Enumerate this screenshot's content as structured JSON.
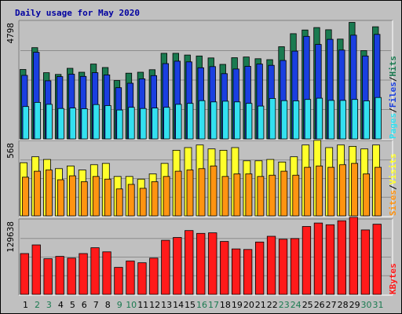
{
  "title": "Daily usage for May 2020",
  "colors": {
    "background": "#c0c0c0",
    "panel": "#c0c0c0",
    "grid": "#8c8c8c",
    "hits": "#1a7a50",
    "files": "#1a3fe0",
    "pages": "#33e0f0",
    "visits": "#ffff2b",
    "sites": "#ff9411",
    "kbytes": "#ff1a1a",
    "title": "#0000a0",
    "weekend_label": "#1a7a50",
    "weekday_label": "#000000"
  },
  "chart_data": [
    {
      "type": "bar",
      "name": "hits-files-pages",
      "max_label": "4798",
      "legend": [
        "Pages",
        "/",
        "Files",
        "/",
        "Hits"
      ],
      "categories": [
        "1",
        "2",
        "3",
        "4",
        "5",
        "6",
        "7",
        "8",
        "9",
        "10",
        "11",
        "12",
        "13",
        "14",
        "15",
        "16",
        "17",
        "18",
        "19",
        "20",
        "21",
        "22",
        "23",
        "24",
        "25",
        "26",
        "27",
        "28",
        "29",
        "30",
        "31"
      ],
      "ylim": [
        0,
        4798
      ],
      "series": [
        {
          "name": "Hits",
          "values": [
            2830,
            3720,
            2700,
            2630,
            2880,
            2720,
            3050,
            2910,
            2380,
            2680,
            2720,
            2820,
            3490,
            3490,
            3420,
            3380,
            3300,
            3040,
            3310,
            3340,
            3270,
            3230,
            3760,
            4290,
            4440,
            4540,
            4450,
            4070,
            4750,
            3600,
            4570
          ]
        },
        {
          "name": "Files",
          "values": [
            2590,
            3530,
            2370,
            2540,
            2640,
            2550,
            2700,
            2610,
            2090,
            2270,
            2450,
            2580,
            3070,
            3170,
            3140,
            2900,
            2950,
            2660,
            2850,
            2960,
            3050,
            3000,
            3200,
            3580,
            4180,
            3850,
            4060,
            3620,
            4230,
            3380,
            4260
          ]
        },
        {
          "name": "Pages",
          "values": [
            1320,
            1490,
            1410,
            1240,
            1260,
            1230,
            1400,
            1360,
            1180,
            1290,
            1240,
            1260,
            1290,
            1410,
            1450,
            1560,
            1510,
            1540,
            1510,
            1450,
            1340,
            1650,
            1560,
            1550,
            1610,
            1660,
            1570,
            1570,
            1610,
            1550,
            1690
          ]
        }
      ]
    },
    {
      "type": "bar",
      "name": "visits-sites",
      "max_label": "568",
      "legend": [
        "Sites",
        "/",
        "Visits"
      ],
      "categories": [
        "1",
        "2",
        "3",
        "4",
        "5",
        "6",
        "7",
        "8",
        "9",
        "10",
        "11",
        "12",
        "13",
        "14",
        "15",
        "16",
        "17",
        "18",
        "19",
        "20",
        "21",
        "22",
        "23",
        "24",
        "25",
        "26",
        "27",
        "28",
        "29",
        "30",
        "31"
      ],
      "ylim": [
        0,
        568
      ],
      "series": [
        {
          "name": "Visits",
          "values": [
            405,
            450,
            430,
            360,
            380,
            350,
            390,
            400,
            300,
            300,
            280,
            320,
            400,
            500,
            520,
            540,
            510,
            500,
            520,
            420,
            420,
            430,
            410,
            450,
            540,
            575,
            520,
            540,
            530,
            510,
            540
          ]
        },
        {
          "name": "Sites",
          "values": [
            295,
            340,
            350,
            275,
            305,
            260,
            300,
            280,
            205,
            240,
            210,
            260,
            300,
            340,
            350,
            360,
            380,
            300,
            320,
            320,
            300,
            310,
            340,
            310,
            370,
            380,
            370,
            390,
            400,
            320,
            370
          ]
        }
      ]
    },
    {
      "type": "bar",
      "name": "kbytes",
      "max_label": "129638",
      "legend": [
        "KBytes"
      ],
      "categories": [
        "1",
        "2",
        "3",
        "4",
        "5",
        "6",
        "7",
        "8",
        "9",
        "10",
        "11",
        "12",
        "13",
        "14",
        "15",
        "16",
        "17",
        "18",
        "19",
        "20",
        "21",
        "22",
        "23",
        "24",
        "25",
        "26",
        "27",
        "28",
        "29",
        "30",
        "31"
      ],
      "ylim": [
        0,
        129638
      ],
      "series": [
        {
          "name": "KBytes",
          "values": [
            71000,
            86000,
            62000,
            66000,
            63000,
            71000,
            81000,
            74000,
            47000,
            58000,
            55000,
            63000,
            94000,
            99000,
            111000,
            106000,
            107000,
            92000,
            79000,
            78000,
            91000,
            101000,
            96000,
            97000,
            118000,
            124000,
            121000,
            128000,
            134000,
            112000,
            122000
          ]
        }
      ]
    }
  ],
  "day_labels": {
    "weekend_days": [
      "2",
      "3",
      "9",
      "10",
      "16",
      "17",
      "23",
      "24",
      "30",
      "31"
    ]
  }
}
